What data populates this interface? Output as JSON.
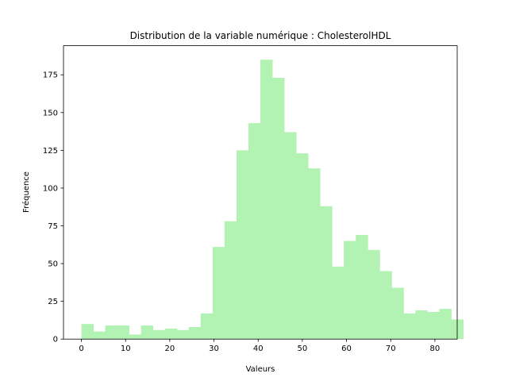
{
  "chart_data": {
    "type": "bar",
    "title": "Distribution de la variable numérique : CholesterolHDL",
    "xlabel": "Valeurs",
    "ylabel": "Fréquence",
    "xlim": [
      -4.05,
      85.05
    ],
    "ylim": [
      0,
      194.25
    ],
    "xticks": [
      0,
      10,
      20,
      30,
      40,
      50,
      60,
      70,
      80
    ],
    "yticks": [
      0,
      25,
      50,
      75,
      100,
      125,
      150,
      175
    ],
    "bin_width": 2.7,
    "bin_edges_start": 0,
    "bin_values": [
      10,
      5,
      9,
      9,
      3,
      9,
      6,
      7,
      6,
      8,
      17,
      61,
      78,
      125,
      143,
      185,
      173,
      137,
      123,
      113,
      88,
      48,
      65,
      69,
      59,
      45,
      34,
      17,
      19,
      18,
      20,
      13
    ],
    "bar_color": "#b2f2b2",
    "grid": false
  }
}
